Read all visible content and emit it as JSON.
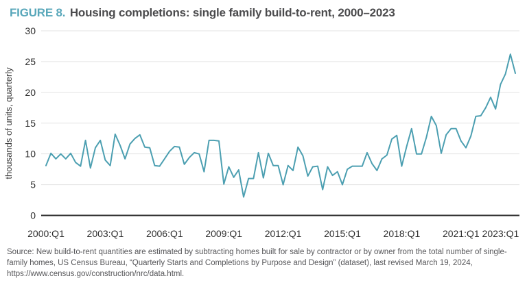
{
  "figure": {
    "label": "FIGURE 8.",
    "title": "Housing completions: single family build-to-rent, 2000–2023"
  },
  "chart_data": {
    "type": "line",
    "title": "Housing completions: single family build-to-rent, 2000–2023",
    "xlabel": "",
    "ylabel": "thousands of units, quarterly",
    "ylim": [
      0,
      30
    ],
    "yticks": [
      0,
      5,
      10,
      15,
      20,
      25,
      30
    ],
    "grid": true,
    "legend": "none",
    "x_start": "2000:Q1",
    "x_end": "2023:Q4",
    "xtick_labels": [
      "2000:Q1",
      "2003:Q1",
      "2006:Q1",
      "2009:Q1",
      "2012:Q1",
      "2015:Q1",
      "2018:Q1",
      "2021:Q1",
      "2023:Q1"
    ],
    "xtick_quarter_index": [
      0,
      12,
      24,
      36,
      48,
      60,
      72,
      84,
      92
    ],
    "series": [
      {
        "name": "Single family build-to-rent completions (thousands of units)",
        "values": [
          8.1,
          10.1,
          9.2,
          10.0,
          9.2,
          10.1,
          8.6,
          8.0,
          12.2,
          7.7,
          11.0,
          12.2,
          9.0,
          8.1,
          13.2,
          11.4,
          9.2,
          11.6,
          12.5,
          13.1,
          11.1,
          11.0,
          8.1,
          8.0,
          9.2,
          10.4,
          11.2,
          11.1,
          8.3,
          9.4,
          10.2,
          10.0,
          7.1,
          12.2,
          12.2,
          12.1,
          5.1,
          7.9,
          6.2,
          7.4,
          3.0,
          6.0,
          6.0,
          10.2,
          6.1,
          10.1,
          8.1,
          8.1,
          5.0,
          8.1,
          7.3,
          11.1,
          9.7,
          6.4,
          7.9,
          8.0,
          4.2,
          7.9,
          6.5,
          7.1,
          5.0,
          7.5,
          8.0,
          8.0,
          8.0,
          10.2,
          8.4,
          7.3,
          9.2,
          9.8,
          12.4,
          13.0,
          8.0,
          11.2,
          14.1,
          10.0,
          10.0,
          12.7,
          16.1,
          14.6,
          10.1,
          13.1,
          14.1,
          14.1,
          12.1,
          11.0,
          12.9,
          16.1,
          16.2,
          17.5,
          19.2,
          17.3,
          21.3,
          23.0,
          26.2,
          23.1
        ]
      }
    ],
    "line_color": "#4C9FB1"
  },
  "source": {
    "text": "Source: New build-to-rent quantities are estimated by subtracting homes built for sale by contractor or by owner from the total number of single-family homes, US Census Bureau, “Quarterly Starts and Completions by Purpose and Design” (dataset), last revised March 19, 2024, https://www.census.gov/construction/nrc/data.html."
  },
  "colors": {
    "accent": "#58A7BA",
    "title_text": "#4B4B4D",
    "axis_line": "#2B2B2B",
    "gridline": "#E3E3E3",
    "tick_text": "#2D2D2D",
    "ylabel_text": "#3F3F3F",
    "source_text": "#565659"
  }
}
